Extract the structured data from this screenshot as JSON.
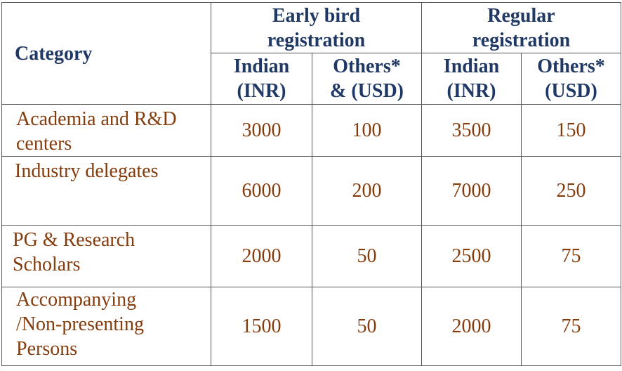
{
  "headers": {
    "category": "Category",
    "early_bird": "Early bird registration",
    "regular": "Regular registration",
    "early_indian": "Indian (INR)",
    "early_others": "Others* & (USD)",
    "regular_indian": "Indian (INR)",
    "regular_others": "Others* (USD)"
  },
  "rows": [
    {
      "category": "Academia and R&D centers",
      "early_indian": "3000",
      "early_others": "100",
      "regular_indian": "3500",
      "regular_others": "150"
    },
    {
      "category": "Industry delegates",
      "early_indian": "6000",
      "early_others": "200",
      "regular_indian": "7000",
      "regular_others": "250"
    },
    {
      "category": "PG & Research Scholars",
      "early_indian": "2000",
      "early_others": "50",
      "regular_indian": "2500",
      "regular_others": "75"
    },
    {
      "category": "Accompanying /Non-presenting Persons",
      "early_indian": "1500",
      "early_others": "50",
      "regular_indian": "2000",
      "regular_others": "75"
    }
  ],
  "colors": {
    "header_text": "#1f3864",
    "body_text": "#843c0c",
    "border": "#555555"
  }
}
